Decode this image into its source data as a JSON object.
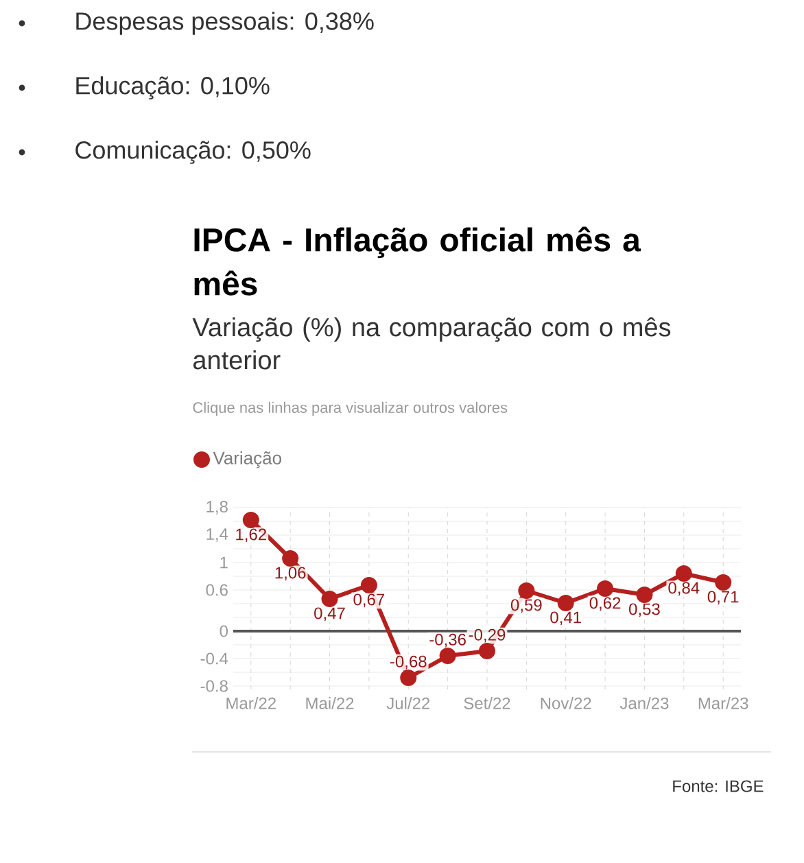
{
  "chart_data": {
    "type": "line",
    "title": "IPCA - Inflação oficial mês a mês",
    "subtitle": "Variação (%) na comparação com o mês anterior",
    "annotations": [
      "Despesas pessoais: 0,38%",
      "Educação: 0,10%",
      "Comunicação: 0,50%",
      "Clique nas linhas para visualizar outros valores",
      "Fonte: IBGE"
    ],
    "categories": [
      "Mar/22",
      null,
      "Mai/22",
      null,
      "Jul/22",
      null,
      "Set/22",
      null,
      "Nov/22",
      null,
      "Jan/23",
      null,
      "Mar/23"
    ],
    "series": [
      {
        "name": "Variação",
        "color": "#b5201e",
        "values": [
          1.62,
          1.06,
          0.47,
          0.67,
          -0.68,
          -0.36,
          -0.29,
          0.59,
          0.41,
          0.62,
          0.53,
          0.84,
          0.71
        ],
        "value_labels": [
          "1,62",
          "1,06",
          "0,47",
          "0,67",
          "-0,68",
          "-0,36",
          "-0,29",
          "0,59",
          "0,41",
          "0,62",
          "0,53",
          "0,84",
          "0,71"
        ]
      }
    ],
    "ylim": [
      -0.85,
      1.8
    ],
    "yticks": [
      {
        "value": 1.8,
        "label": "1,8"
      },
      {
        "value": 1.6,
        "label": null
      },
      {
        "value": 1.4,
        "label": "1,4"
      },
      {
        "value": 1.2,
        "label": null
      },
      1,
      {
        "value": 0.8,
        "label": null
      },
      0.6,
      {
        "value": 0.4,
        "label": null
      },
      {
        "value": 0.2,
        "label": null
      },
      0,
      {
        "value": -0.2,
        "label": null
      },
      -0.4,
      {
        "value": -0.6,
        "label": null
      },
      -0.8
    ],
    "ref_lines": [
      {
        "axis": "y",
        "value": 0,
        "color": "#555555"
      }
    ],
    "grid": true,
    "legend": "top left",
    "marker": "circle",
    "line_style": "solid"
  }
}
